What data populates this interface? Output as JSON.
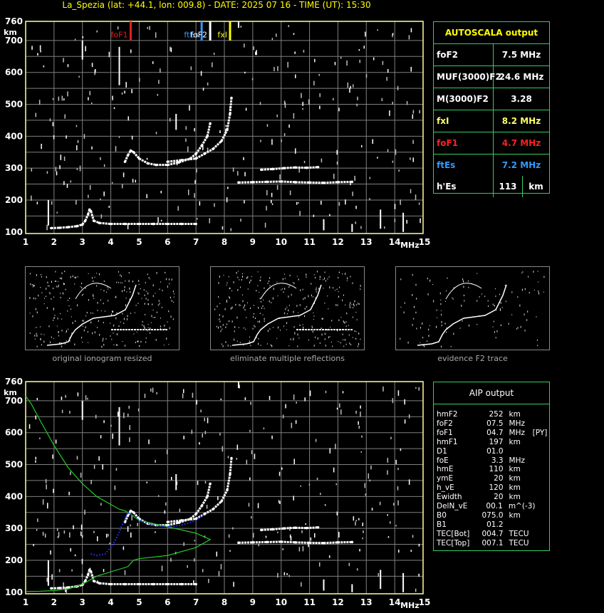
{
  "header": "La_Spezia (lat: +44.1, lon: 009.8) - DATE: 2025 07 16 - TIME (UT): 15:30",
  "axes": {
    "y_unit": "km",
    "x_unit": "MHz",
    "y_ticks": [
      "760",
      "700",
      "600",
      "500",
      "400",
      "300",
      "200",
      "100"
    ],
    "x_ticks": [
      "1",
      "2",
      "3",
      "4",
      "5",
      "6",
      "7",
      "8",
      "9",
      "10",
      "11",
      "12",
      "13",
      "14",
      "15"
    ],
    "grid_color": "#7f7f7f",
    "axis_color": "#ffff99"
  },
  "markers": [
    {
      "label": "foF1",
      "freq": 4.7,
      "color": "#e02020"
    },
    {
      "label": "ftEs",
      "freq": 7.2,
      "color": "#3399ff"
    },
    {
      "label": "foF2",
      "freq": 7.5,
      "color": "#ffffff"
    },
    {
      "label": "fxI",
      "freq": 8.2,
      "color": "#ffff00"
    }
  ],
  "autoscala": {
    "title": "AUTOSCALA output",
    "border_color": "#33cc66",
    "rows": [
      {
        "key": "foF2",
        "value": "7.5 MHz",
        "color": "#ffffff"
      },
      {
        "key": "MUF(3000)F2",
        "value": "24.6 MHz",
        "color": "#ffffff"
      },
      {
        "key": "M(3000)F2",
        "value": "3.28",
        "color": "#ffffff"
      },
      {
        "key": "fxI",
        "value": "8.2 MHz",
        "color": "#ffff66"
      },
      {
        "key": "foF1",
        "value": "4.7 MHz",
        "color": "#ff2020"
      },
      {
        "key": "ftEs",
        "value": "7.2 MHz",
        "color": "#3399ff"
      }
    ],
    "hes": {
      "key": "h'Es",
      "value": "113",
      "unit": "km"
    }
  },
  "thumbnails": [
    {
      "caption": "original ionogram resized"
    },
    {
      "caption": "eliminate multiple reflections"
    },
    {
      "caption": "evidence F2 trace"
    }
  ],
  "aip": {
    "title": "AIP output",
    "rows": [
      [
        "hmF2",
        "252",
        "km",
        ""
      ],
      [
        "foF2",
        "07.5",
        "MHz",
        ""
      ],
      [
        "foF1",
        "04.7",
        "MHz",
        "[PY]"
      ],
      [
        "hmF1",
        "197",
        "km",
        ""
      ],
      [
        "D1",
        "01.0",
        "",
        ""
      ],
      [
        "foE",
        "3.3",
        "MHz",
        ""
      ],
      [
        "hmE",
        "110",
        "km",
        ""
      ],
      [
        "ymE",
        "20",
        "km",
        ""
      ],
      [
        "h_vE",
        "120",
        "km",
        ""
      ],
      [
        "Ewidth",
        "20",
        "km",
        ""
      ],
      [
        "DelN_vE",
        "00.1",
        "m^(-3)",
        ""
      ],
      [
        "B0",
        "075.0",
        "km",
        ""
      ],
      [
        "B1",
        "01.2",
        "",
        ""
      ],
      [
        "TEC[Bot]",
        "004.7",
        "TECU",
        ""
      ],
      [
        "TEC[Top]",
        "007.1",
        "TECU",
        ""
      ]
    ]
  },
  "chart_data": [
    {
      "type": "scatter",
      "title": "",
      "xlabel": "MHz",
      "ylabel": "km",
      "xlim": [
        1,
        15
      ],
      "ylim": [
        95,
        760
      ],
      "grid": true,
      "series": [
        {
          "color": "#ffffff",
          "x": [
            1.9,
            2.2,
            2.5,
            2.8,
            3.0,
            3.1,
            3.2,
            3.25,
            3.3,
            3.4,
            3.6,
            4.0,
            4.5,
            5.0,
            5.5,
            6.0,
            6.5,
            7.0
          ],
          "y": [
            112,
            113,
            115,
            118,
            123,
            135,
            155,
            170,
            165,
            135,
            128,
            125,
            125,
            125,
            125,
            125,
            125,
            125
          ]
        },
        {
          "color": "#ffffff",
          "x": [
            4.5,
            4.6,
            4.7,
            4.8,
            5.0,
            5.3,
            5.6,
            6.0,
            6.4,
            6.8,
            7.0,
            7.2,
            7.4,
            7.5
          ],
          "y": [
            320,
            340,
            355,
            350,
            330,
            315,
            310,
            310,
            318,
            330,
            345,
            370,
            400,
            440
          ]
        },
        {
          "color": "#ffffff",
          "x": [
            6.0,
            6.5,
            7.0,
            7.3,
            7.6,
            7.9,
            8.1,
            8.2,
            8.25
          ],
          "y": [
            320,
            325,
            330,
            345,
            360,
            385,
            420,
            470,
            520
          ]
        },
        {
          "color": "#ffffff",
          "x": [
            8.5,
            9.0,
            9.5,
            10.0,
            10.5,
            11.0,
            11.5,
            12.0,
            12.5
          ],
          "y": [
            255,
            256,
            257,
            258,
            256,
            255,
            254,
            256,
            257
          ]
        },
        {
          "color": "#ffffff",
          "x": [
            9.3,
            9.7,
            10.1,
            10.5,
            10.9,
            11.3
          ],
          "y": [
            295,
            297,
            300,
            302,
            301,
            303
          ]
        }
      ]
    },
    {
      "type": "line",
      "title": "",
      "xlabel": "MHz",
      "ylabel": "km",
      "xlim": [
        1,
        15
      ],
      "ylim": [
        95,
        760
      ],
      "grid": true,
      "series": [
        {
          "color": "#22cc22",
          "x": [
            1.0,
            1.2,
            1.5,
            2.0,
            2.5,
            3.0,
            3.5,
            4.0,
            4.3,
            4.5,
            4.6
          ],
          "y": [
            715,
            690,
            640,
            560,
            490,
            440,
            400,
            375,
            360,
            355,
            350
          ]
        },
        {
          "color": "#22cc22",
          "x": [
            4.6,
            5.0,
            6.0,
            7.0,
            7.5,
            7.0,
            6.0,
            5.0,
            4.8,
            4.7,
            4.6,
            3.5,
            3.0,
            2.5,
            2.0,
            1.5,
            1.0
          ],
          "y": [
            350,
            325,
            305,
            285,
            265,
            240,
            215,
            205,
            200,
            190,
            180,
            150,
            125,
            110,
            105,
            103,
            102
          ]
        },
        {
          "color": "#2233ff",
          "x": [
            3.3,
            3.5,
            3.8,
            4.0,
            4.2,
            4.4,
            4.6,
            4.8,
            5.0,
            5.5,
            6.0,
            6.5,
            7.0,
            7.3
          ],
          "y": [
            220,
            215,
            220,
            240,
            270,
            310,
            350,
            340,
            325,
            310,
            305,
            310,
            325,
            345
          ]
        }
      ]
    }
  ]
}
